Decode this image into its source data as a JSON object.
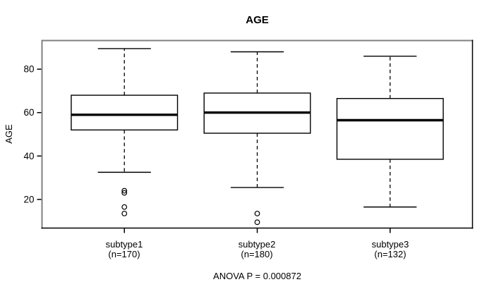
{
  "title": "AGE",
  "y_axis": {
    "label": "AGE"
  },
  "chart_data": {
    "type": "boxplot",
    "title": "AGE",
    "xlabel": "",
    "ylabel": "AGE",
    "ylim": [
      6.8,
      93.2
    ],
    "yticks": [
      20,
      40,
      60,
      80
    ],
    "grid": false,
    "legend": "none",
    "annotation": "ANOVA P = 0.000872",
    "groups": [
      {
        "label": "subtype1",
        "sublabel": "(n=170)",
        "n": 170,
        "whisker_low": 32.5,
        "q1": 52,
        "median": 59,
        "q3": 68,
        "whisker_high": 89.5,
        "outliers": [
          24,
          23,
          16.5,
          13.5
        ]
      },
      {
        "label": "subtype2",
        "sublabel": "(n=180)",
        "n": 180,
        "whisker_low": 25.5,
        "q1": 50.5,
        "median": 60,
        "q3": 69,
        "whisker_high": 88,
        "outliers": [
          13.5,
          9.5
        ]
      },
      {
        "label": "subtype3",
        "sublabel": "(n=132)",
        "n": 132,
        "whisker_low": 16.5,
        "q1": 38.5,
        "median": 56.5,
        "q3": 66.5,
        "whisker_high": 86,
        "outliers": []
      }
    ],
    "colors": {
      "line": "#000000",
      "box_fill": "#ffffff",
      "frame_top_left": "#808080",
      "frame_bottom_right": "#000000",
      "background": "#ffffff"
    }
  }
}
